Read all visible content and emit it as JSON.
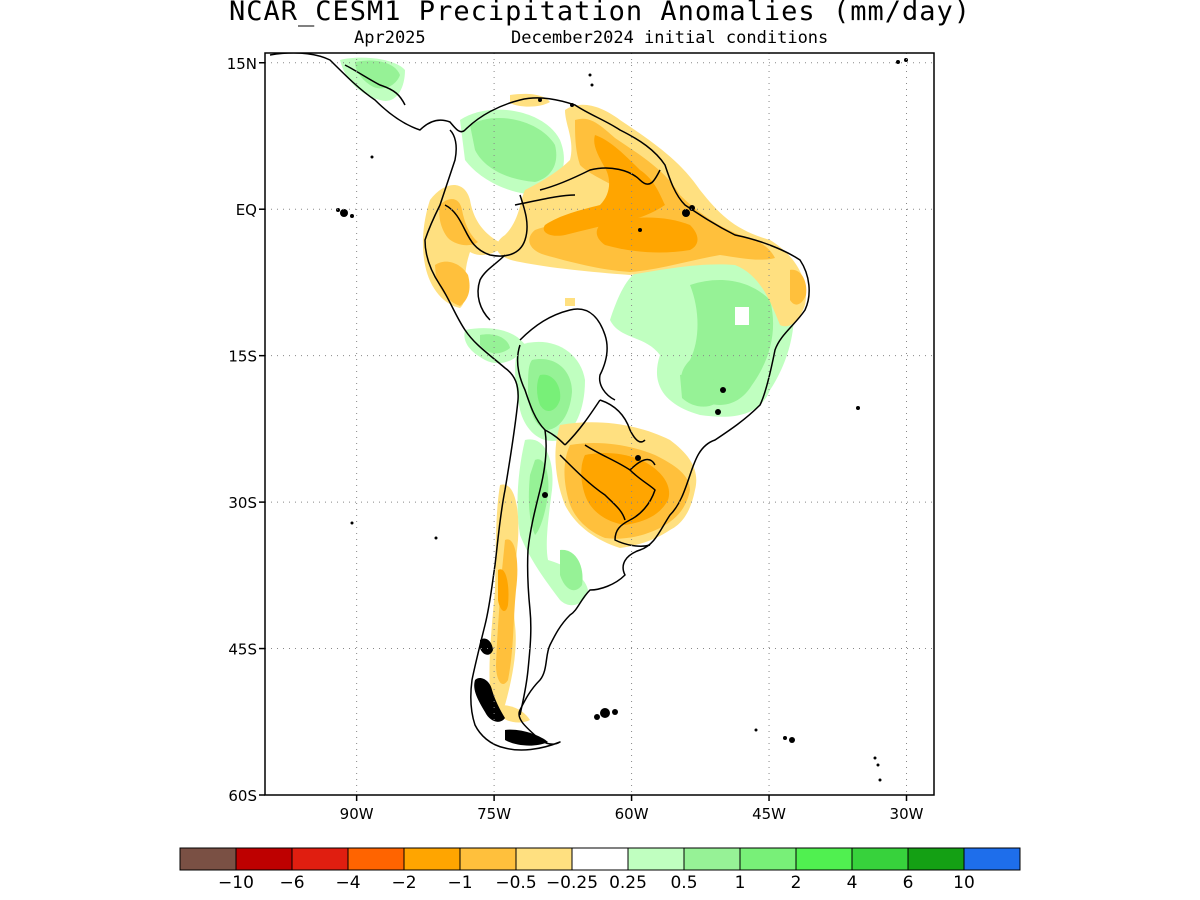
{
  "title": "NCAR_CESM1 Precipitation Anomalies (mm/day)",
  "subtitle_left": "Apr2025",
  "subtitle_right": "December2024 initial conditions",
  "map": {
    "lon_range": [
      -100,
      -27
    ],
    "lat_range": [
      -60,
      16
    ],
    "lat_ticks": [
      {
        "value": 15,
        "label": "15N"
      },
      {
        "value": 0,
        "label": "EQ"
      },
      {
        "value": -15,
        "label": "15S"
      },
      {
        "value": -30,
        "label": "30S"
      },
      {
        "value": -45,
        "label": "45S"
      },
      {
        "value": -60,
        "label": "60S"
      }
    ],
    "lon_ticks": [
      {
        "value": -90,
        "label": "90W"
      },
      {
        "value": -75,
        "label": "75W"
      },
      {
        "value": -60,
        "label": "60W"
      },
      {
        "value": -45,
        "label": "45W"
      },
      {
        "value": -30,
        "label": "30W"
      }
    ],
    "grid": "dotted"
  },
  "colorbar": {
    "colors": [
      "#7a5044",
      "#be0000",
      "#e01e10",
      "#ff6400",
      "#ffa500",
      "#ffc03c",
      "#ffe080",
      "#ffffff",
      "#c0ffc0",
      "#96f296",
      "#78f078",
      "#50f050",
      "#37d23c",
      "#14a014",
      "#1e6eeb"
    ],
    "labels": [
      "-10",
      "-6",
      "-4",
      "-2",
      "-1",
      "-0.5",
      "-0.25",
      "0.25",
      "0.5",
      "1",
      "2",
      "4",
      "6",
      "10"
    ]
  }
}
